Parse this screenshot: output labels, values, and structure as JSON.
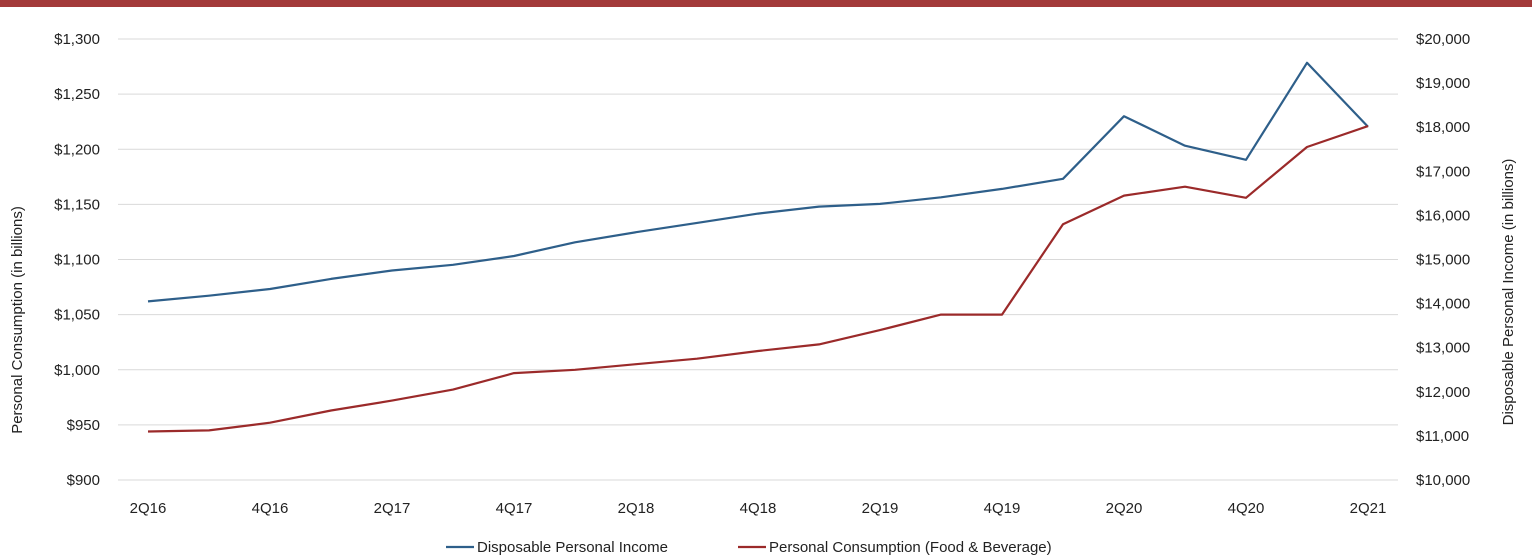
{
  "chart_data": {
    "type": "line",
    "title": "",
    "x": [
      "2Q16",
      "3Q16",
      "4Q16",
      "1Q17",
      "2Q17",
      "3Q17",
      "4Q17",
      "1Q18",
      "2Q18",
      "3Q18",
      "4Q18",
      "1Q19",
      "2Q19",
      "3Q19",
      "4Q19",
      "1Q20",
      "2Q20",
      "3Q20",
      "4Q20",
      "1Q21",
      "2Q21"
    ],
    "x_tick_labels": [
      "2Q16",
      "4Q16",
      "2Q17",
      "4Q17",
      "2Q18",
      "4Q18",
      "2Q19",
      "4Q19",
      "2Q20",
      "4Q20",
      "2Q21"
    ],
    "y_left": {
      "label": "Personal Consumption (in billions)",
      "range": [
        900,
        1300
      ],
      "ticks": [
        900,
        950,
        1000,
        1050,
        1100,
        1150,
        1200,
        1250,
        1300
      ],
      "tick_labels": [
        "$900",
        "$950",
        "$1,000",
        "$1,050",
        "$1,100",
        "$1,150",
        "$1,200",
        "$1,250",
        "$1,300"
      ]
    },
    "y_right": {
      "label": "Disposable Personal Income (in billions)",
      "range": [
        10000,
        20000
      ],
      "ticks": [
        10000,
        11000,
        12000,
        13000,
        14000,
        15000,
        16000,
        17000,
        18000,
        19000,
        20000
      ],
      "tick_labels": [
        "$10,000",
        "$11,000",
        "$12,000",
        "$13,000",
        "$14,000",
        "$15,000",
        "$16,000",
        "$17,000",
        "$18,000",
        "$19,000",
        "$20,000"
      ]
    },
    "grid": true,
    "legend_position": "bottom",
    "series": [
      {
        "name": "Disposable Personal Income",
        "axis": "right",
        "color": "#2e5f8a",
        "values": [
          14050,
          14180,
          14330,
          14560,
          14750,
          14880,
          15080,
          15390,
          15620,
          15830,
          16040,
          16200,
          16260,
          16410,
          16600,
          16830,
          18250,
          17580,
          17260,
          19460,
          18010
        ]
      },
      {
        "name": "Personal Consumption (Food & Beverage)",
        "axis": "left",
        "color": "#9b2a2a",
        "values": [
          944,
          945,
          952,
          963,
          972,
          982,
          997,
          1000,
          1005,
          1010,
          1017,
          1023,
          1036,
          1050,
          1050,
          1132,
          1158,
          1166,
          1156,
          1202,
          1221
        ]
      }
    ]
  }
}
